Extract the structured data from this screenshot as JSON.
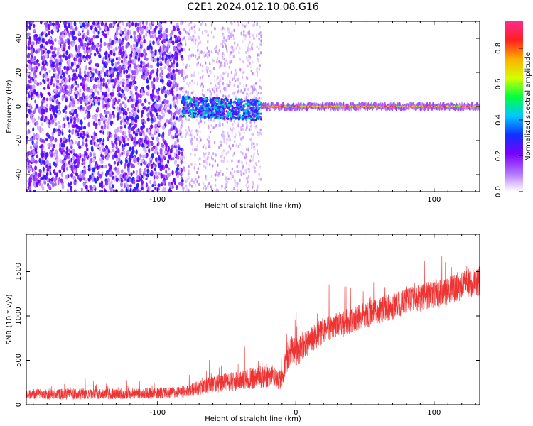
{
  "title": "C2E1.2024.012.10.08.G16",
  "chart_data": [
    {
      "type": "heatmap",
      "xlabel": "Height of straight line (km)",
      "ylabel": "Frequency (Hz)",
      "xlim": [
        -195,
        133
      ],
      "ylim": [
        -50,
        50
      ],
      "x_ticks": [
        -100,
        0,
        100
      ],
      "x_tick_labels": [
        "-100",
        "",
        "100"
      ],
      "y_ticks": [
        -40,
        -20,
        0,
        20,
        40
      ],
      "y_tick_labels": [
        "-40",
        "-20",
        "0",
        "20",
        "40"
      ],
      "grid": false,
      "colorbar": {
        "label": "Normalized spectral amplitude",
        "range": [
          0,
          0.95
        ],
        "ticks": [
          0.0,
          0.2,
          0.4,
          0.6,
          0.8
        ],
        "tick_labels": [
          "0.0",
          "0.2",
          "0.4",
          "0.6",
          "0.8"
        ],
        "colors": [
          "#ffffff",
          "#b070ff",
          "#7a00ff",
          "#1030ff",
          "#00c8ff",
          "#00ff40",
          "#d4ff00",
          "#ffb000",
          "#ff2020",
          "#ff2a90"
        ]
      },
      "regions": [
        {
          "x_range": [
            -195,
            -82
          ],
          "pattern": "broadband noise, dense purple speckles across all frequencies",
          "amplitude": 0.2
        },
        {
          "x_range": [
            -82,
            -25
          ],
          "pattern": "signal near 0 Hz, band from -6 to 6 Hz with blue/green blobs, faint scattered noise above and below",
          "amplitude": 0.35
        },
        {
          "x_range": [
            -25,
            133
          ],
          "pattern": "narrow line at 0 Hz, red/orange core with blue halo, no noise",
          "amplitude": 0.85
        }
      ]
    },
    {
      "type": "line",
      "xlabel": "Height of straight line (km)",
      "ylabel": "SNR (10 * v/v)",
      "xlim": [
        -195,
        133
      ],
      "ylim": [
        0,
        1920
      ],
      "x_ticks": [
        -100,
        0,
        100
      ],
      "x_tick_labels": [
        "-100",
        "0",
        "100"
      ],
      "y_ticks": [
        0,
        500,
        1000,
        1500
      ],
      "y_tick_labels": [
        "0",
        "500",
        "1000",
        "1500"
      ],
      "grid": false,
      "series_color": "#ee3333",
      "x": [
        -195,
        -150,
        -100,
        -80,
        -60,
        -40,
        -20,
        -10,
        -7,
        -3,
        0,
        10,
        20,
        40,
        60,
        80,
        100,
        120,
        133
      ],
      "y": [
        120,
        120,
        130,
        150,
        230,
        270,
        330,
        280,
        500,
        620,
        580,
        720,
        840,
        950,
        1060,
        1160,
        1250,
        1340,
        1400
      ],
      "noise": [
        120,
        120,
        120,
        140,
        190,
        230,
        260,
        260,
        300,
        330,
        330,
        300,
        300,
        300,
        300,
        300,
        320,
        340,
        340
      ]
    }
  ]
}
